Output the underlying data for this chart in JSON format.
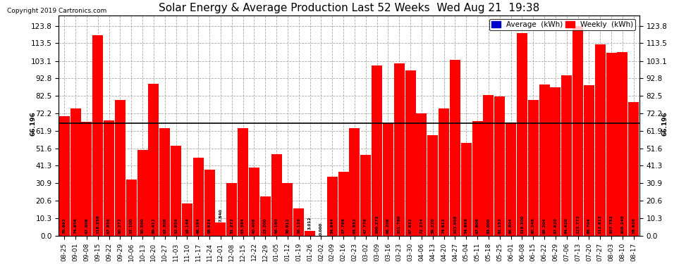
{
  "title": "Solar Energy & Average Production Last 52 Weeks  Wed Aug 21  19:38",
  "copyright": "Copyright 2019 Cartronics.com",
  "average_value": 66.196,
  "bar_color": "#FF0000",
  "average_line_color": "#000000",
  "background_color": "#FFFFFF",
  "plot_bg_color": "#FFFFFF",
  "grid_color": "#AAAAAA",
  "yticks": [
    0.0,
    10.3,
    20.6,
    30.9,
    41.3,
    51.6,
    61.9,
    72.2,
    82.5,
    92.8,
    103.1,
    113.5,
    123.8
  ],
  "legend_avg_color": "#0000CD",
  "legend_weekly_color": "#FF0000",
  "categories": [
    "08-25",
    "09-01",
    "09-08",
    "09-15",
    "09-22",
    "09-29",
    "10-06",
    "10-13",
    "10-20",
    "10-27",
    "11-03",
    "11-10",
    "11-17",
    "11-24",
    "12-01",
    "12-08",
    "12-15",
    "12-22",
    "12-29",
    "01-05",
    "01-12",
    "01-19",
    "01-26",
    "02-02",
    "02-09",
    "02-16",
    "02-23",
    "03-02",
    "03-09",
    "03-16",
    "03-23",
    "03-30",
    "04-06",
    "04-13",
    "04-20",
    "04-27",
    "05-04",
    "05-11",
    "05-18",
    "05-25",
    "06-01",
    "06-08",
    "06-15",
    "06-22",
    "06-29",
    "07-06",
    "07-13",
    "07-20",
    "07-27",
    "08-03",
    "08-10",
    "08-17"
  ],
  "values": [
    70.692,
    74.956,
    67.008,
    118.256,
    67.856,
    80.272,
    33.1,
    50.56,
    89.412,
    63.308,
    52.956,
    19.148,
    46.104,
    38.924,
    7.84,
    31.272,
    63.584,
    40.408,
    23.2,
    48.16,
    30.912,
    16.128,
    3.012,
    0.0,
    34.944,
    37.796,
    63.552,
    47.776,
    100.272,
    66.208,
    101.78,
    97.632,
    72.224,
    59.22,
    74.912,
    103.908,
    54.668,
    67.608,
    83.0,
    82.152,
    66.804,
    119.3,
    80.248,
    89.204,
    87.62,
    94.42,
    123.772,
    88.704,
    112.812,
    107.752,
    108.24,
    78.62
  ],
  "ylim": [
    0,
    130
  ],
  "figsize": [
    9.9,
    3.75
  ],
  "dpi": 100
}
